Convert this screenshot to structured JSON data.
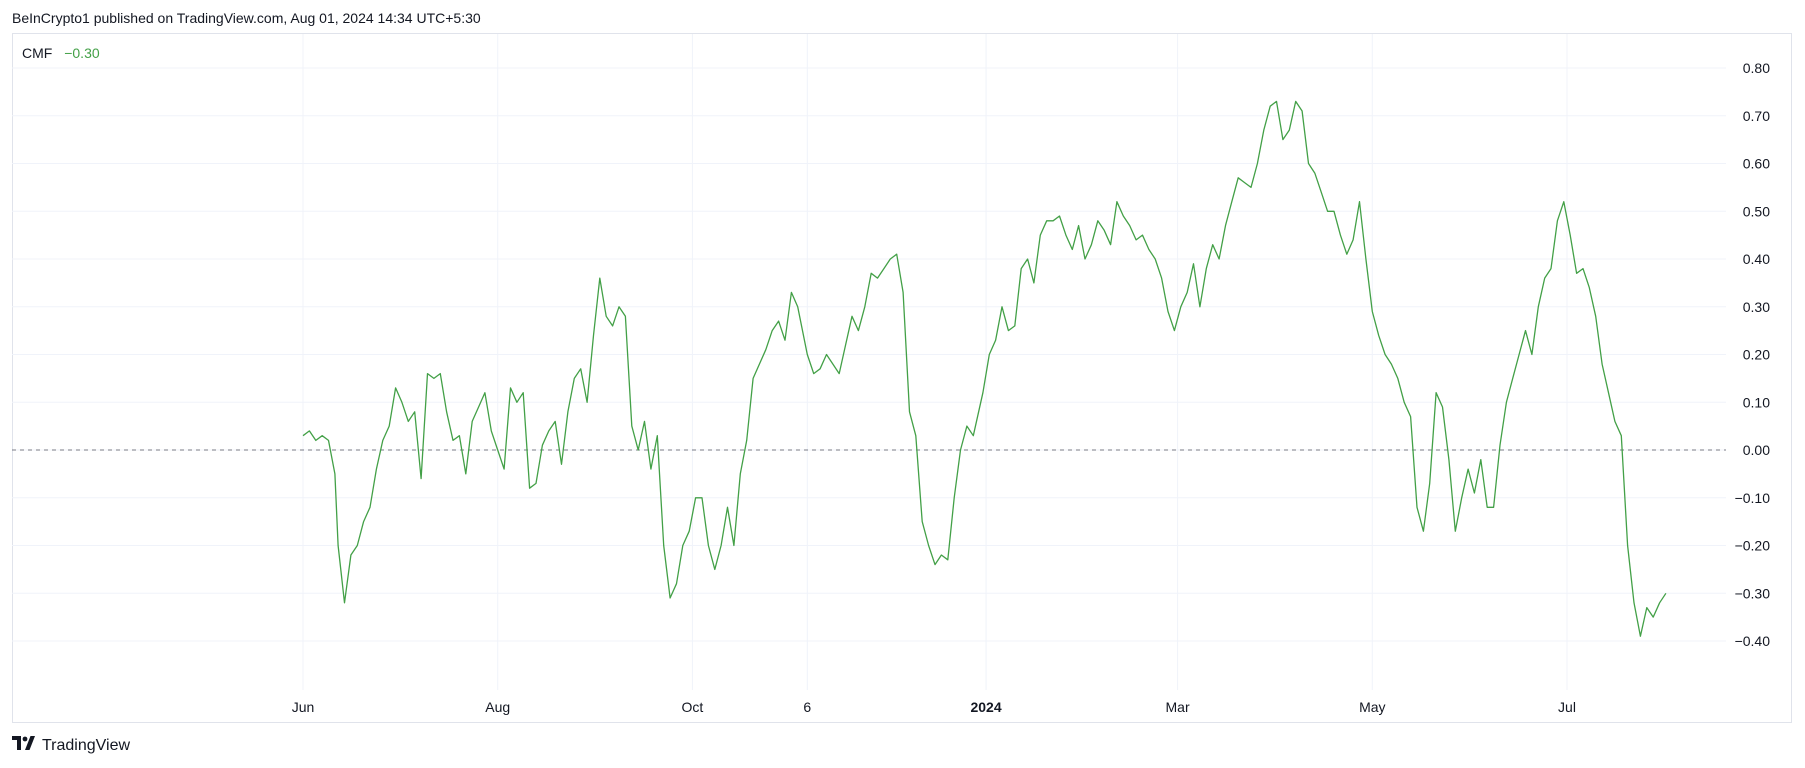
{
  "header": {
    "attribution": "BeInCrypto1 published on TradingView.com, Aug 01, 2024 14:34 UTC+5:30"
  },
  "legend": {
    "name": "CMF",
    "value": "−0.30",
    "color": "#43a047"
  },
  "footer": {
    "brand": "TradingView",
    "logo_icon": "tradingview-logo-icon"
  },
  "colors": {
    "line": "#43a047",
    "grid": "#f0f3fa",
    "zero_line": "#787b86"
  },
  "chart_data": {
    "type": "line",
    "title": "",
    "xlabel": "",
    "ylabel": "",
    "ylim": [
      -0.5,
      0.85
    ],
    "y_ticks": [
      0.8,
      0.7,
      0.6,
      0.5,
      0.4,
      0.3,
      0.2,
      0.1,
      0.0,
      -0.1,
      -0.2,
      -0.3,
      -0.4
    ],
    "y_tick_labels": [
      "0.80",
      "0.70",
      "0.60",
      "0.50",
      "0.40",
      "0.30",
      "0.20",
      "0.10",
      "0.00",
      "−0.10",
      "−0.20",
      "−0.30",
      "−0.40"
    ],
    "x_range": [
      "2023-05-10",
      "2024-08-20"
    ],
    "x_ticks": [
      {
        "date": "2023-06-01",
        "label": "Jun",
        "bold": false
      },
      {
        "date": "2023-08-01",
        "label": "Aug",
        "bold": false
      },
      {
        "date": "2023-10-01",
        "label": "Oct",
        "bold": false
      },
      {
        "date": "2023-11-06",
        "label": "6",
        "bold": false
      },
      {
        "date": "2024-01-01",
        "label": "2024",
        "bold": true
      },
      {
        "date": "2024-03-01",
        "label": "Mar",
        "bold": false
      },
      {
        "date": "2024-05-01",
        "label": "May",
        "bold": false
      },
      {
        "date": "2024-07-01",
        "label": "Jul",
        "bold": false
      }
    ],
    "reference_line": {
      "y": 0.0,
      "style": "dashed"
    },
    "grid": true,
    "series": [
      {
        "name": "CMF",
        "x": [
          "2023-06-01",
          "2023-06-03",
          "2023-06-05",
          "2023-06-07",
          "2023-06-09",
          "2023-06-11",
          "2023-06-12",
          "2023-06-14",
          "2023-06-16",
          "2023-06-18",
          "2023-06-20",
          "2023-06-22",
          "2023-06-24",
          "2023-06-26",
          "2023-06-28",
          "2023-06-30",
          "2023-07-02",
          "2023-07-04",
          "2023-07-06",
          "2023-07-08",
          "2023-07-10",
          "2023-07-12",
          "2023-07-14",
          "2023-07-16",
          "2023-07-18",
          "2023-07-20",
          "2023-07-22",
          "2023-07-24",
          "2023-07-26",
          "2023-07-28",
          "2023-07-30",
          "2023-08-01",
          "2023-08-03",
          "2023-08-05",
          "2023-08-07",
          "2023-08-09",
          "2023-08-11",
          "2023-08-13",
          "2023-08-15",
          "2023-08-17",
          "2023-08-19",
          "2023-08-21",
          "2023-08-23",
          "2023-08-25",
          "2023-08-27",
          "2023-08-29",
          "2023-08-31",
          "2023-09-02",
          "2023-09-04",
          "2023-09-06",
          "2023-09-08",
          "2023-09-10",
          "2023-09-12",
          "2023-09-14",
          "2023-09-16",
          "2023-09-18",
          "2023-09-20",
          "2023-09-22",
          "2023-09-24",
          "2023-09-26",
          "2023-09-28",
          "2023-09-30",
          "2023-10-02",
          "2023-10-04",
          "2023-10-06",
          "2023-10-08",
          "2023-10-10",
          "2023-10-12",
          "2023-10-14",
          "2023-10-16",
          "2023-10-18",
          "2023-10-20",
          "2023-10-22",
          "2023-10-24",
          "2023-10-26",
          "2023-10-28",
          "2023-10-30",
          "2023-11-01",
          "2023-11-03",
          "2023-11-06",
          "2023-11-08",
          "2023-11-10",
          "2023-11-12",
          "2023-11-14",
          "2023-11-16",
          "2023-11-18",
          "2023-11-20",
          "2023-11-22",
          "2023-11-24",
          "2023-11-26",
          "2023-11-28",
          "2023-11-30",
          "2023-12-02",
          "2023-12-04",
          "2023-12-06",
          "2023-12-08",
          "2023-12-10",
          "2023-12-12",
          "2023-12-14",
          "2023-12-16",
          "2023-12-18",
          "2023-12-20",
          "2023-12-22",
          "2023-12-24",
          "2023-12-26",
          "2023-12-28",
          "2023-12-31",
          "2024-01-02",
          "2024-01-04",
          "2024-01-06",
          "2024-01-08",
          "2024-01-10",
          "2024-01-12",
          "2024-01-14",
          "2024-01-16",
          "2024-01-18",
          "2024-01-20",
          "2024-01-22",
          "2024-01-24",
          "2024-01-26",
          "2024-01-28",
          "2024-01-30",
          "2024-02-01",
          "2024-02-03",
          "2024-02-05",
          "2024-02-07",
          "2024-02-09",
          "2024-02-11",
          "2024-02-13",
          "2024-02-15",
          "2024-02-17",
          "2024-02-19",
          "2024-02-21",
          "2024-02-23",
          "2024-02-25",
          "2024-02-27",
          "2024-02-29",
          "2024-03-02",
          "2024-03-04",
          "2024-03-06",
          "2024-03-08",
          "2024-03-10",
          "2024-03-12",
          "2024-03-14",
          "2024-03-16",
          "2024-03-18",
          "2024-03-20",
          "2024-03-22",
          "2024-03-24",
          "2024-03-26",
          "2024-03-28",
          "2024-03-30",
          "2024-04-01",
          "2024-04-03",
          "2024-04-05",
          "2024-04-07",
          "2024-04-09",
          "2024-04-11",
          "2024-04-13",
          "2024-04-15",
          "2024-04-17",
          "2024-04-19",
          "2024-04-21",
          "2024-04-23",
          "2024-04-25",
          "2024-04-27",
          "2024-04-29",
          "2024-05-01",
          "2024-05-03",
          "2024-05-05",
          "2024-05-07",
          "2024-05-09",
          "2024-05-11",
          "2024-05-13",
          "2024-05-15",
          "2024-05-17",
          "2024-05-19",
          "2024-05-21",
          "2024-05-23",
          "2024-05-25",
          "2024-05-27",
          "2024-05-29",
          "2024-05-31",
          "2024-06-02",
          "2024-06-04",
          "2024-06-06",
          "2024-06-08",
          "2024-06-10",
          "2024-06-12",
          "2024-06-14",
          "2024-06-16",
          "2024-06-18",
          "2024-06-20",
          "2024-06-22",
          "2024-06-24",
          "2024-06-26",
          "2024-06-28",
          "2024-06-30",
          "2024-07-02",
          "2024-07-04",
          "2024-07-06",
          "2024-07-08",
          "2024-07-10",
          "2024-07-12",
          "2024-07-14",
          "2024-07-16",
          "2024-07-18",
          "2024-07-20",
          "2024-07-22",
          "2024-07-24",
          "2024-07-26",
          "2024-07-28",
          "2024-07-30",
          "2024-08-01"
        ],
        "values": [
          0.03,
          0.04,
          0.02,
          0.03,
          0.02,
          -0.05,
          -0.2,
          -0.32,
          -0.22,
          -0.2,
          -0.15,
          -0.12,
          -0.04,
          0.02,
          0.05,
          0.13,
          0.1,
          0.06,
          0.08,
          -0.06,
          0.16,
          0.15,
          0.16,
          0.08,
          0.02,
          0.03,
          -0.05,
          0.06,
          0.09,
          0.12,
          0.04,
          0.0,
          -0.04,
          0.13,
          0.1,
          0.12,
          -0.08,
          -0.07,
          0.01,
          0.04,
          0.06,
          -0.03,
          0.08,
          0.15,
          0.17,
          0.1,
          0.24,
          0.36,
          0.28,
          0.26,
          0.3,
          0.28,
          0.05,
          0.0,
          0.06,
          -0.04,
          0.03,
          -0.2,
          -0.31,
          -0.28,
          -0.2,
          -0.17,
          -0.1,
          -0.1,
          -0.2,
          -0.25,
          -0.2,
          -0.12,
          -0.2,
          -0.05,
          0.02,
          0.15,
          0.18,
          0.21,
          0.25,
          0.27,
          0.23,
          0.33,
          0.3,
          0.2,
          0.16,
          0.17,
          0.2,
          0.18,
          0.16,
          0.22,
          0.28,
          0.25,
          0.3,
          0.37,
          0.36,
          0.38,
          0.4,
          0.41,
          0.33,
          0.08,
          0.03,
          -0.15,
          -0.2,
          -0.24,
          -0.22,
          -0.23,
          -0.1,
          0.0,
          0.05,
          0.03,
          0.12,
          0.2,
          0.23,
          0.3,
          0.25,
          0.26,
          0.38,
          0.4,
          0.35,
          0.45,
          0.48,
          0.48,
          0.49,
          0.45,
          0.42,
          0.47,
          0.4,
          0.43,
          0.48,
          0.46,
          0.43,
          0.52,
          0.49,
          0.47,
          0.44,
          0.45,
          0.42,
          0.4,
          0.36,
          0.29,
          0.25,
          0.3,
          0.33,
          0.39,
          0.3,
          0.38,
          0.43,
          0.4,
          0.47,
          0.52,
          0.57,
          0.56,
          0.55,
          0.6,
          0.67,
          0.72,
          0.73,
          0.65,
          0.67,
          0.73,
          0.71,
          0.6,
          0.58,
          0.54,
          0.5,
          0.5,
          0.45,
          0.41,
          0.44,
          0.52,
          0.4,
          0.29,
          0.24,
          0.2,
          0.18,
          0.15,
          0.1,
          0.07,
          -0.12,
          -0.17,
          -0.07,
          0.12,
          0.09,
          -0.02,
          -0.17,
          -0.1,
          -0.04,
          -0.09,
          -0.02,
          -0.12,
          -0.12,
          0.01,
          0.1,
          0.15,
          0.2,
          0.25,
          0.2,
          0.3,
          0.36,
          0.38,
          0.48,
          0.52,
          0.45,
          0.37,
          0.38,
          0.34,
          0.28,
          0.18,
          0.12,
          0.06,
          0.03,
          -0.2,
          -0.32,
          -0.39,
          -0.33,
          -0.35,
          -0.32,
          -0.3
        ]
      }
    ]
  }
}
